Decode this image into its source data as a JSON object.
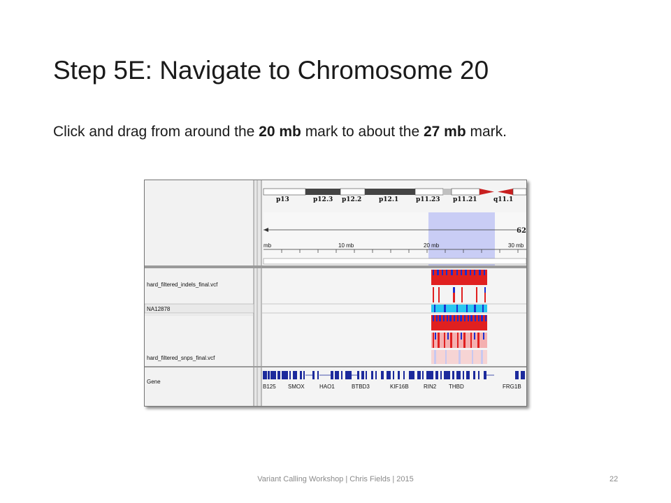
{
  "slide": {
    "title": "Step 5E: Navigate to Chromosome 20",
    "body": {
      "part1": "Click and drag from around the ",
      "bold1": "20 mb",
      "part2": " mark to about the ",
      "bold2": "27 mb",
      "part3": " mark."
    },
    "footer": "Variant Calling Workshop | Chris Fields | 2015",
    "page_number": "22"
  },
  "igv": {
    "ideogram_bands": [
      "p13",
      "p12.3",
      "p12.2",
      "p12.1",
      "p11.23",
      "p11.21",
      "q11.1"
    ],
    "ruler_end_label": "62",
    "ruler_ticks": [
      "mb",
      "10 mb",
      "20 mb",
      "30 mb"
    ],
    "tracks": {
      "indels": "hard_filtered_indels_final.vcf",
      "sample": "NA12878",
      "snps": "hard_filtered_snps_final.vcf",
      "gene": "Gene"
    },
    "genes": [
      "B125",
      "SMOX",
      "HAO1",
      "BTBD3",
      "KIF16B",
      "RIN2",
      "THBD",
      "FRG1B"
    ],
    "colors": {
      "variant_red": "#e02020",
      "variant_blue": "#1a2fd0",
      "sample_cyan": "#29c8f0",
      "selection": "#c9cdf5",
      "gene_blue": "#1c2a9c"
    }
  }
}
